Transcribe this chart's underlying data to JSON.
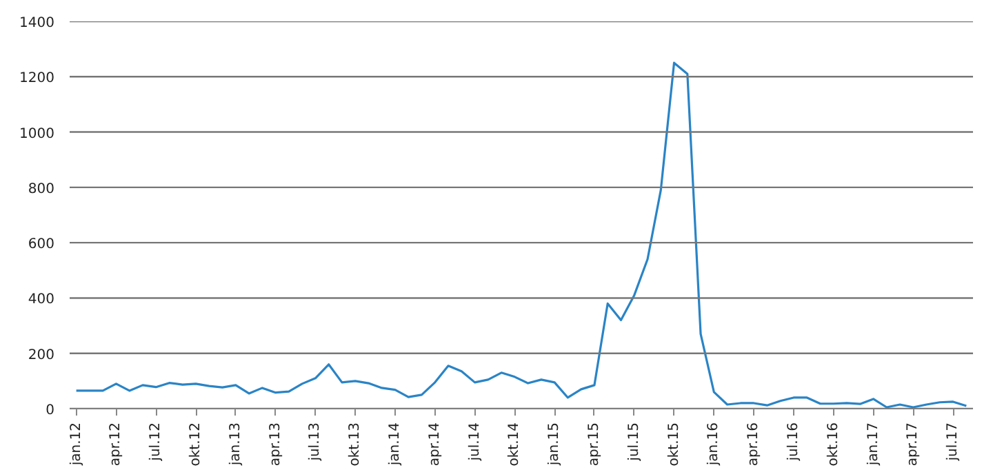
{
  "chart_data": {
    "type": "line",
    "categories": [
      "jan.12",
      null,
      null,
      "apr.12",
      null,
      null,
      "jul.12",
      null,
      null,
      "okt.12",
      null,
      null,
      "jan.13",
      null,
      null,
      "apr.13",
      null,
      null,
      "jul.13",
      null,
      null,
      "okt.13",
      null,
      null,
      "jan.14",
      null,
      null,
      "apr.14",
      null,
      null,
      "jul.14",
      null,
      null,
      "okt.14",
      null,
      null,
      "jan.15",
      null,
      null,
      "apr.15",
      null,
      null,
      "jul.15",
      null,
      null,
      "okt.15",
      null,
      null,
      "jan.16",
      null,
      null,
      "apr.16",
      null,
      null,
      "jul.16",
      null,
      null,
      "okt.16",
      null,
      null,
      "jan.17",
      null,
      null,
      "apr.17",
      null,
      null,
      "jul.17",
      null
    ],
    "series": [
      {
        "color": "#2a84c6",
        "values": [
          65,
          65,
          65,
          90,
          65,
          85,
          78,
          93,
          87,
          90,
          82,
          77,
          85,
          55,
          75,
          58,
          62,
          90,
          110,
          160,
          95,
          100,
          92,
          75,
          68,
          42,
          50,
          95,
          155,
          135,
          95,
          105,
          130,
          115,
          92,
          105,
          95,
          40,
          70,
          85,
          380,
          320,
          410,
          540,
          790,
          1250,
          1210,
          270,
          60,
          15,
          20,
          20,
          12,
          28,
          40,
          40,
          18,
          18,
          20,
          17,
          35,
          5,
          15,
          5,
          15,
          23,
          25,
          10
        ]
      }
    ],
    "ylim": [
      0,
      1400
    ],
    "yticks": [
      0,
      200,
      400,
      600,
      800,
      1000,
      1200,
      1400
    ],
    "grid": "y",
    "marker": "none",
    "line_style": "solid"
  }
}
